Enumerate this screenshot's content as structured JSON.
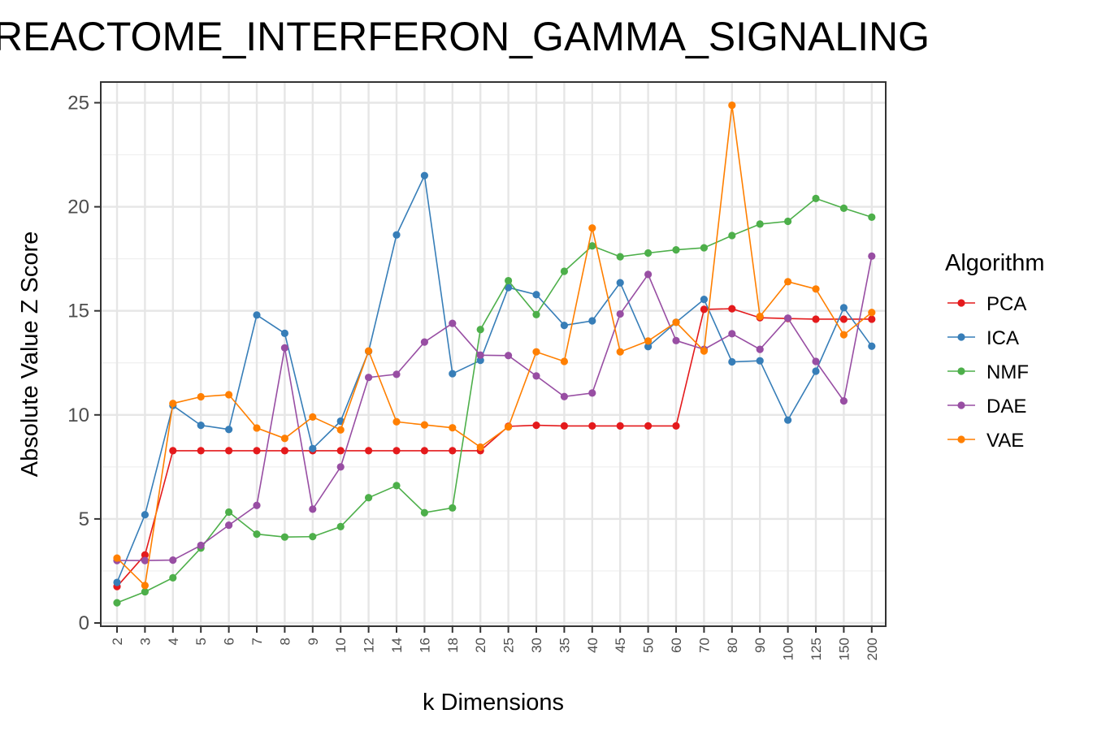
{
  "chart_data": {
    "type": "line",
    "title": "REACTOME_INTERFERON_GAMMA_SIGNALING",
    "xlabel": "k Dimensions",
    "ylabel": "Absolute Value Z Score",
    "categories": [
      "2",
      "3",
      "4",
      "5",
      "6",
      "7",
      "8",
      "9",
      "10",
      "12",
      "14",
      "16",
      "18",
      "20",
      "25",
      "30",
      "35",
      "40",
      "45",
      "50",
      "60",
      "70",
      "80",
      "90",
      "100",
      "125",
      "150",
      "200"
    ],
    "ylim": [
      0,
      26
    ],
    "yticks": [
      0,
      5,
      10,
      15,
      20,
      25
    ],
    "grid": true,
    "legend_position": "right",
    "legend_title": "Algorithm",
    "series": [
      {
        "name": "PCA",
        "color": "#e41a1c",
        "values": [
          1.75,
          3.27,
          8.28,
          8.28,
          8.28,
          8.28,
          8.28,
          8.28,
          8.28,
          8.28,
          8.28,
          8.28,
          8.28,
          8.28,
          9.45,
          9.5,
          9.47,
          9.47,
          9.47,
          9.47,
          9.47,
          15.07,
          15.1,
          14.67,
          14.63,
          14.6,
          14.6,
          14.6
        ]
      },
      {
        "name": "ICA",
        "color": "#377eb8",
        "values": [
          1.95,
          5.2,
          10.45,
          9.5,
          9.3,
          14.8,
          13.92,
          8.38,
          9.7,
          13.05,
          18.65,
          21.5,
          11.98,
          12.62,
          16.12,
          15.78,
          14.3,
          14.52,
          16.35,
          13.28,
          14.45,
          15.55,
          12.55,
          12.6,
          9.75,
          12.1,
          15.15,
          13.3
        ]
      },
      {
        "name": "NMF",
        "color": "#4daf4a",
        "values": [
          0.97,
          1.5,
          2.17,
          3.6,
          5.33,
          4.27,
          4.13,
          4.15,
          4.63,
          6.02,
          6.6,
          5.3,
          5.53,
          14.1,
          16.45,
          14.82,
          16.9,
          18.12,
          17.6,
          17.78,
          17.93,
          18.03,
          18.62,
          19.17,
          19.3,
          20.4,
          19.93,
          19.5
        ]
      },
      {
        "name": "DAE",
        "color": "#984ea3",
        "values": [
          3.0,
          3.0,
          3.02,
          3.73,
          4.7,
          5.65,
          13.22,
          5.47,
          7.5,
          11.8,
          11.95,
          13.5,
          14.4,
          12.87,
          12.85,
          11.87,
          10.88,
          11.05,
          14.85,
          16.75,
          13.57,
          13.15,
          13.9,
          13.15,
          14.65,
          12.57,
          10.67,
          17.63
        ]
      },
      {
        "name": "VAE",
        "color": "#ff7f00",
        "values": [
          3.12,
          1.8,
          10.55,
          10.87,
          10.97,
          9.37,
          8.87,
          9.9,
          9.28,
          13.07,
          9.67,
          9.52,
          9.38,
          8.45,
          9.42,
          13.03,
          12.57,
          18.98,
          13.03,
          13.55,
          14.45,
          13.07,
          24.88,
          14.73,
          16.4,
          16.05,
          13.85,
          14.92
        ]
      }
    ]
  }
}
